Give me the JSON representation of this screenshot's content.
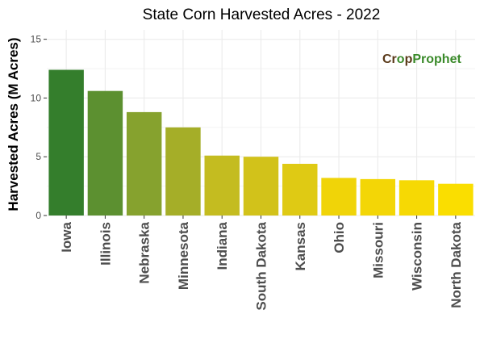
{
  "chart_data": {
    "type": "bar",
    "title": "State Corn Harvested Acres - 2022",
    "xlabel": "",
    "ylabel": "Harvested Acres (M Acres)",
    "ylim": [
      0,
      15.8
    ],
    "yticks": [
      0,
      5,
      10,
      15
    ],
    "grid": true,
    "categories": [
      "Iowa",
      "Illinois",
      "Nebraska",
      "Minnesota",
      "Indiana",
      "South Dakota",
      "Kansas",
      "Ohio",
      "Missouri",
      "Wisconsin",
      "North Dakota"
    ],
    "values": [
      12.4,
      10.6,
      8.8,
      7.5,
      5.1,
      5.0,
      4.4,
      3.2,
      3.1,
      3.0,
      2.7
    ],
    "colors": [
      "#347e2c",
      "#5c9030",
      "#86a22e",
      "#a5ae28",
      "#c4bc20",
      "#d2c21a",
      "#dfca14",
      "#f0d408",
      "#f3d606",
      "#f6d904",
      "#fade00"
    ]
  },
  "logo": {
    "text": "CropProphet",
    "part1": "Cr",
    "part2": "o",
    "part3": "p",
    "part4": "Prophet",
    "color_dark": "#5a3a1a",
    "color_green": "#3a8a2a"
  }
}
